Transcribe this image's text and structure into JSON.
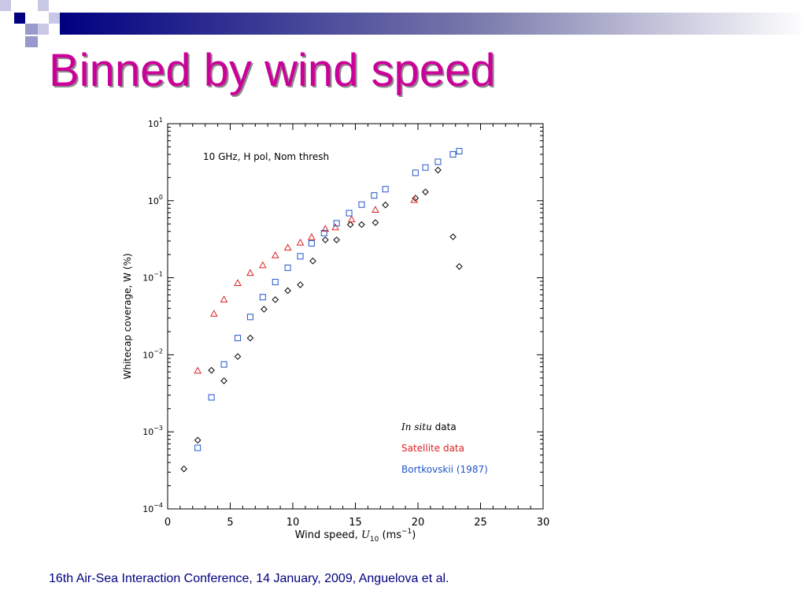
{
  "slide": {
    "title": "Binned by wind speed",
    "footer": "16th Air-Sea Interaction Conference, 14 January, 2009, Anguelova et al."
  },
  "colors": {
    "title": "#cc0099",
    "footer": "#000080",
    "banner_dark": "#000080",
    "banner_light": "#9999cc"
  },
  "chart_data": {
    "type": "scatter",
    "annotation": "10 GHz, H pol, Nom thresh",
    "xlabel": {
      "prefix": "Wind speed, ",
      "var": "U",
      "sub": "10",
      "unit_prefix": " (ms",
      "unit_sup": "−1",
      "unit_suffix": ")"
    },
    "ylabel": "Whitecap coverage, W (%)",
    "xlim": [
      0,
      30
    ],
    "ylim": [
      0.0001,
      10
    ],
    "yscale": "log",
    "grid": false,
    "legend_position": "bottom-right",
    "x_ticks": [
      "0",
      "5",
      "10",
      "15",
      "20",
      "25",
      "30"
    ],
    "y_ticks": [
      {
        "base": "10",
        "exp": "1"
      },
      {
        "base": "10",
        "exp": "0"
      },
      {
        "base": "10",
        "exp": "−1"
      },
      {
        "base": "10",
        "exp": "−2"
      },
      {
        "base": "10",
        "exp": "−3"
      },
      {
        "base": "10",
        "exp": "−4"
      }
    ],
    "series": [
      {
        "name": "In situ data",
        "marker": "diamond",
        "color": "#000000",
        "x": [
          1.3,
          2.4,
          3.5,
          4.5,
          5.6,
          6.6,
          7.7,
          8.6,
          9.6,
          10.6,
          11.6,
          12.6,
          13.5,
          14.6,
          15.5,
          16.6,
          17.4,
          19.8,
          20.6,
          21.6,
          22.8,
          23.3
        ],
        "y": [
          0.00033,
          0.00078,
          0.0063,
          0.0046,
          0.0095,
          0.0165,
          0.039,
          0.052,
          0.068,
          0.081,
          0.165,
          0.31,
          0.31,
          0.49,
          0.49,
          0.52,
          0.88,
          1.08,
          1.3,
          2.5,
          0.34,
          0.14
        ]
      },
      {
        "name": "Satellite data",
        "marker": "triangle",
        "color": "#dd2222",
        "x": [
          2.4,
          3.7,
          4.5,
          5.6,
          6.6,
          7.6,
          8.6,
          9.6,
          10.6,
          11.5,
          12.6,
          13.4,
          14.7,
          16.6,
          19.7
        ],
        "y": [
          0.0062,
          0.034,
          0.052,
          0.085,
          0.115,
          0.145,
          0.195,
          0.245,
          0.285,
          0.335,
          0.43,
          0.45,
          0.57,
          0.76,
          1.02
        ]
      },
      {
        "name": "Bortkovskii (1987)",
        "marker": "square",
        "color": "#2255cc",
        "x": [
          2.4,
          3.5,
          4.5,
          5.6,
          6.6,
          7.6,
          8.6,
          9.6,
          10.6,
          11.5,
          12.5,
          13.5,
          14.5,
          15.5,
          16.5,
          17.4,
          19.8,
          20.6,
          21.6,
          22.8,
          23.3
        ],
        "y": [
          0.00062,
          0.0028,
          0.0075,
          0.0165,
          0.031,
          0.056,
          0.088,
          0.135,
          0.19,
          0.28,
          0.38,
          0.51,
          0.69,
          0.89,
          1.17,
          1.41,
          2.3,
          2.7,
          3.2,
          4.0,
          4.4
        ]
      }
    ]
  }
}
